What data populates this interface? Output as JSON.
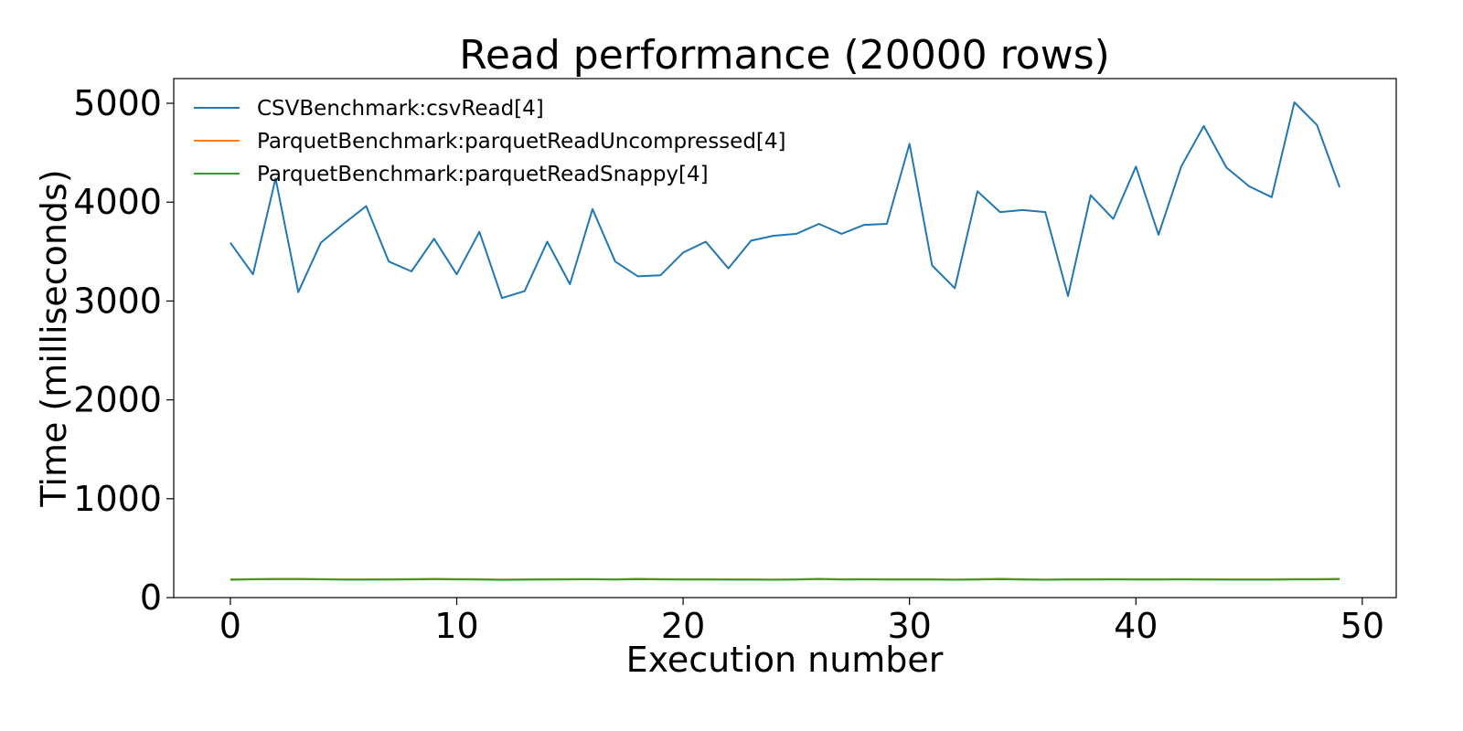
{
  "chart_data": {
    "type": "line",
    "title": "Read performance (20000 rows)",
    "xlabel": "Execution number",
    "ylabel": "Time (milliseconds)",
    "xlim": [
      -2.5,
      51.5
    ],
    "ylim": [
      0,
      5250
    ],
    "xticks": [
      0,
      10,
      20,
      30,
      40,
      50
    ],
    "yticks": [
      0,
      1000,
      2000,
      3000,
      4000,
      5000
    ],
    "grid": false,
    "legend_position": "top-left",
    "x": [
      0,
      1,
      2,
      3,
      4,
      5,
      6,
      7,
      8,
      9,
      10,
      11,
      12,
      13,
      14,
      15,
      16,
      17,
      18,
      19,
      20,
      21,
      22,
      23,
      24,
      25,
      26,
      27,
      28,
      29,
      30,
      31,
      32,
      33,
      34,
      35,
      36,
      37,
      38,
      39,
      40,
      41,
      42,
      43,
      44,
      45,
      46,
      47,
      48,
      49
    ],
    "series": [
      {
        "name": "CSVBenchmark:csvRead[4]",
        "color": "#1f77b4",
        "values": [
          3590,
          3270,
          4240,
          3090,
          3590,
          3780,
          3960,
          3400,
          3300,
          3630,
          3270,
          3700,
          3030,
          3100,
          3600,
          3170,
          3930,
          3400,
          3250,
          3260,
          3490,
          3600,
          3330,
          3610,
          3660,
          3680,
          3780,
          3680,
          3770,
          3780,
          4590,
          3360,
          3130,
          4110,
          3900,
          3920,
          3900,
          3050,
          4070,
          3830,
          4360,
          3670,
          4360,
          4770,
          4350,
          4160,
          4050,
          5010,
          4780,
          4150
        ]
      },
      {
        "name": "ParquetBenchmark:parquetReadUncompressed[4]",
        "color": "#ff7f0e",
        "values": [
          185,
          188,
          190,
          190,
          188,
          185,
          185,
          186,
          188,
          190,
          188,
          186,
          183,
          185,
          186,
          188,
          188,
          185,
          190,
          188,
          186,
          186,
          185,
          185,
          183,
          185,
          190,
          186,
          188,
          186,
          186,
          186,
          183,
          186,
          190,
          186,
          183,
          186,
          186,
          188,
          186,
          186,
          188,
          186,
          185,
          185,
          185,
          188,
          188,
          190
        ]
      },
      {
        "name": "ParquetBenchmark:parquetReadSnappy[4]",
        "color": "#2ca02c",
        "values": [
          180,
          185,
          186,
          186,
          185,
          181,
          181,
          183,
          184,
          186,
          184,
          182,
          179,
          181,
          182,
          184,
          185,
          182,
          186,
          184,
          183,
          183,
          181,
          181,
          180,
          182,
          187,
          182,
          184,
          183,
          183,
          183,
          180,
          183,
          186,
          183,
          180,
          183,
          183,
          184,
          182,
          182,
          184,
          182,
          181,
          181,
          181,
          184,
          184,
          186
        ]
      }
    ]
  }
}
